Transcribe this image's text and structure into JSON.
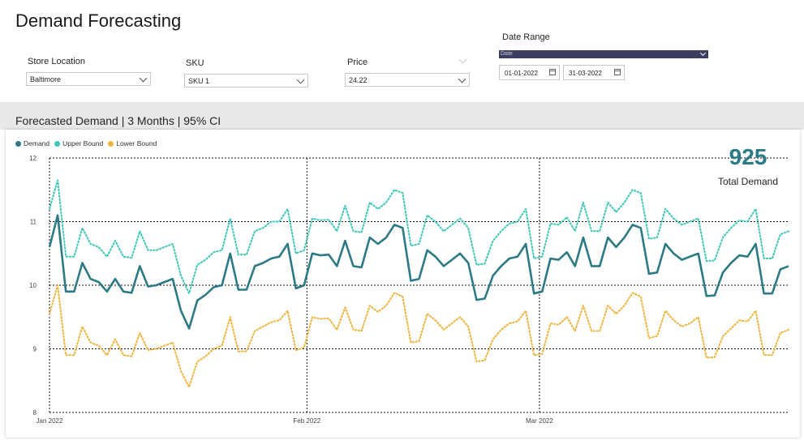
{
  "header": {
    "title": "Demand Forecasting"
  },
  "filters": {
    "store_location": {
      "label": "Store Location",
      "value": "Baltimore"
    },
    "sku": {
      "label": "SKU",
      "value": "SKU 1"
    },
    "price": {
      "label": "Price",
      "value": "24.22"
    },
    "date_range": {
      "label": "Date Range",
      "field": "Date",
      "start": "01-01-2022",
      "end": "31-03-2022"
    }
  },
  "kpi": {
    "value": "925",
    "label": "Total Demand"
  },
  "colors": {
    "demand": "#2b7a85",
    "upper": "#3cc8b8",
    "lower": "#f0b43c"
  },
  "chart_data": {
    "type": "line",
    "title": "Forecasted Demand | 3 Months | 95% CI",
    "legend_position": "top-left",
    "grid": true,
    "ylim": [
      8,
      12
    ],
    "yticks": [
      "8",
      "9",
      "10",
      "11",
      "12"
    ],
    "xlim": [
      "2022-01-01",
      "2022-03-31"
    ],
    "xticks": [
      {
        "date": "2022-01-01",
        "label": "Jan 2022"
      },
      {
        "date": "2022-02-01",
        "label": "Feb 2022"
      },
      {
        "date": "2022-03-01",
        "label": "Mar 2022"
      }
    ],
    "series": [
      {
        "name": "Demand",
        "color": "#2b7a85",
        "style": "solid",
        "values": [
          10.6,
          11.1,
          9.9,
          9.9,
          10.35,
          10.1,
          10.05,
          9.9,
          10.1,
          9.9,
          9.88,
          10.3,
          9.98,
          10.0,
          10.05,
          10.1,
          9.6,
          9.32,
          9.76,
          9.85,
          9.97,
          10.0,
          10.5,
          9.93,
          9.93,
          10.3,
          10.35,
          10.42,
          10.45,
          10.65,
          9.95,
          10.0,
          10.5,
          10.47,
          10.48,
          10.3,
          10.7,
          10.3,
          10.28,
          10.75,
          10.65,
          10.75,
          10.95,
          10.9,
          10.07,
          10.1,
          10.55,
          10.45,
          10.3,
          10.4,
          10.5,
          10.35,
          9.77,
          9.79,
          10.15,
          10.3,
          10.42,
          10.45,
          10.65,
          9.87,
          9.9,
          10.42,
          10.4,
          10.52,
          10.3,
          10.75,
          10.3,
          10.3,
          10.75,
          10.6,
          10.75,
          10.95,
          10.9,
          10.18,
          10.2,
          10.65,
          10.5,
          10.4,
          10.45,
          10.5,
          9.83,
          9.84,
          10.2,
          10.35,
          10.47,
          10.45,
          10.65,
          9.87,
          9.87,
          10.25,
          10.3
        ]
      },
      {
        "name": "Upper Bound",
        "color": "#3cc8b8",
        "style": "dotted",
        "values": [
          11.2,
          11.65,
          10.45,
          10.45,
          10.9,
          10.65,
          10.6,
          10.45,
          10.7,
          10.45,
          10.43,
          10.85,
          10.55,
          10.55,
          10.6,
          10.65,
          10.15,
          9.87,
          10.32,
          10.4,
          10.52,
          10.55,
          11.05,
          10.48,
          10.48,
          10.85,
          10.9,
          11.0,
          11.0,
          11.2,
          10.5,
          10.55,
          11.05,
          11.02,
          11.03,
          10.85,
          11.25,
          10.85,
          10.83,
          11.3,
          11.2,
          11.3,
          11.5,
          11.45,
          10.62,
          10.65,
          11.1,
          11.0,
          10.85,
          10.95,
          11.05,
          10.9,
          10.32,
          10.34,
          10.7,
          10.85,
          10.97,
          11.0,
          11.2,
          10.42,
          10.45,
          10.97,
          10.95,
          11.07,
          10.85,
          11.3,
          10.85,
          10.85,
          11.3,
          11.15,
          11.3,
          11.5,
          11.45,
          10.73,
          10.75,
          11.2,
          11.05,
          10.95,
          11.0,
          11.05,
          10.38,
          10.39,
          10.75,
          10.9,
          11.02,
          11.0,
          11.2,
          10.42,
          10.42,
          10.8,
          10.85
        ]
      },
      {
        "name": "Lower Bound",
        "color": "#f0b43c",
        "style": "dotted",
        "values": [
          9.55,
          10.0,
          8.9,
          8.9,
          9.35,
          9.1,
          9.05,
          8.9,
          9.15,
          8.9,
          8.88,
          9.25,
          8.98,
          9.0,
          9.05,
          9.1,
          8.65,
          8.4,
          8.8,
          8.88,
          9.0,
          9.05,
          9.5,
          8.96,
          8.96,
          9.28,
          9.35,
          9.42,
          9.45,
          9.6,
          8.98,
          9.02,
          9.5,
          9.47,
          9.48,
          9.3,
          9.65,
          9.3,
          9.28,
          9.68,
          9.58,
          9.68,
          9.88,
          9.82,
          9.1,
          9.12,
          9.55,
          9.45,
          9.3,
          9.4,
          9.5,
          9.35,
          8.8,
          8.82,
          9.15,
          9.3,
          9.4,
          9.43,
          9.6,
          8.9,
          8.92,
          9.4,
          9.38,
          9.5,
          9.28,
          9.68,
          9.28,
          9.28,
          9.68,
          9.55,
          9.68,
          9.88,
          9.82,
          9.17,
          9.2,
          9.6,
          9.45,
          9.35,
          9.4,
          9.5,
          8.86,
          8.87,
          9.2,
          9.32,
          9.45,
          9.43,
          9.6,
          8.9,
          8.9,
          9.25,
          9.3
        ]
      }
    ]
  }
}
